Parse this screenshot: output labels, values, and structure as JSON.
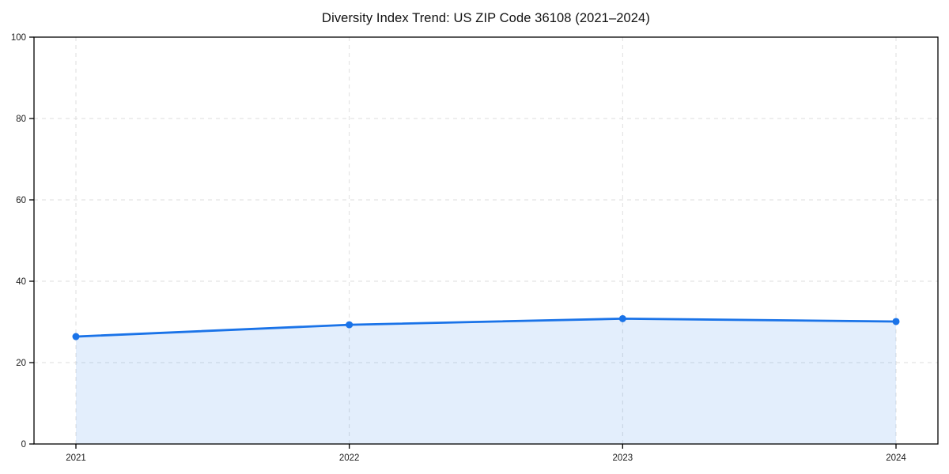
{
  "page": {
    "background": "#ffffff"
  },
  "chart_data": {
    "type": "area",
    "title": "Diversity Index Trend: US ZIP Code 36108 (2021–2024)",
    "categories": [
      "2021",
      "2022",
      "2023",
      "2024"
    ],
    "series": [
      {
        "name": "Diversity Index",
        "values": [
          26.4,
          29.3,
          30.8,
          30.1
        ]
      }
    ],
    "xlabel": "",
    "ylabel": "",
    "ylim": [
      0,
      100
    ],
    "yticks": [
      0,
      20,
      40,
      60,
      80,
      100
    ],
    "grid": true,
    "grid_style": "dashed",
    "legend": "none",
    "marker": "circle",
    "colors": {
      "line": "#1a73e8",
      "marker": "#1a73e8",
      "fill": "rgba(26,115,232,0.12)",
      "grid": "#dedede",
      "axis": "#000000",
      "tick_label": "#1a1a1a",
      "title": "#111111"
    }
  }
}
